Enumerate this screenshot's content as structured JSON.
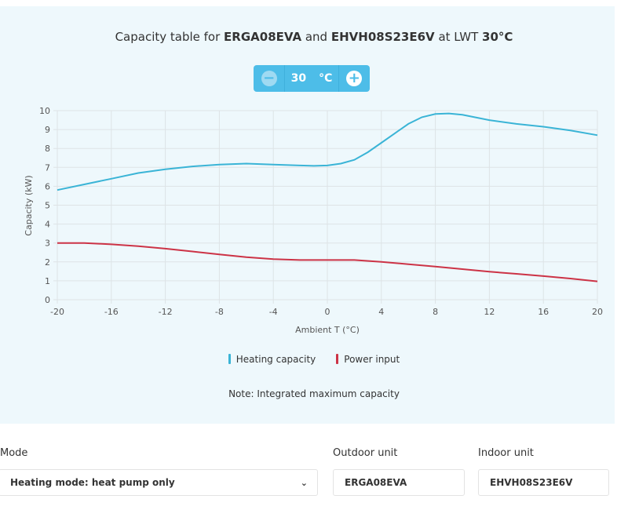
{
  "header": {
    "title_pre": "Capacity table for ",
    "outdoor": "ERGA08EVA",
    "title_and": " and ",
    "indoor": "EHVH08S23E6V",
    "title_at": " at LWT ",
    "lwt": "30°C"
  },
  "stepper": {
    "value": "30",
    "unit": "°C",
    "minus": "−",
    "plus": "+"
  },
  "legend": {
    "heating": "Heating capacity",
    "power": "Power input"
  },
  "note": "Note: Integrated maximum capacity",
  "form": {
    "mode_label": "Mode",
    "mode_value": "Heating mode: heat pump only",
    "mode_chevron": "⌄",
    "outdoor_label": "Outdoor unit",
    "outdoor_value": "ERGA08EVA",
    "indoor_label": "Indoor unit",
    "indoor_value": "EHVH08S23E6V"
  },
  "colors": {
    "heating": "#3ab4d6",
    "power": "#cc3346",
    "accent": "#4dbde8"
  },
  "chart_data": {
    "type": "line",
    "xlabel": "Ambient T (°C)",
    "ylabel": "Capacity (kW)",
    "xlim": [
      -20,
      20
    ],
    "ylim": [
      0,
      10
    ],
    "xticks": [
      -20,
      -16,
      -12,
      -8,
      -4,
      0,
      4,
      8,
      12,
      16,
      20
    ],
    "yticks": [
      0,
      1,
      2,
      3,
      4,
      5,
      6,
      7,
      8,
      9,
      10
    ],
    "grid": true,
    "legend_position": "bottom",
    "series": [
      {
        "name": "Heating capacity",
        "x": [
          -20,
          -18,
          -16,
          -14,
          -12,
          -10,
          -8,
          -6,
          -4,
          -2,
          -1,
          0,
          1,
          2,
          3,
          4,
          5,
          6,
          7,
          8,
          9,
          10,
          12,
          14,
          16,
          18,
          20
        ],
        "y": [
          5.8,
          6.1,
          6.4,
          6.7,
          6.9,
          7.05,
          7.15,
          7.2,
          7.15,
          7.1,
          7.08,
          7.1,
          7.2,
          7.4,
          7.8,
          8.3,
          8.8,
          9.3,
          9.65,
          9.82,
          9.85,
          9.78,
          9.5,
          9.3,
          9.15,
          8.95,
          8.7
        ]
      },
      {
        "name": "Power input",
        "x": [
          -20,
          -18,
          -16,
          -14,
          -12,
          -10,
          -8,
          -6,
          -4,
          -2,
          0,
          2,
          4,
          6,
          8,
          10,
          12,
          14,
          16,
          18,
          20
        ],
        "y": [
          3.0,
          3.0,
          2.93,
          2.83,
          2.7,
          2.55,
          2.4,
          2.25,
          2.15,
          2.1,
          2.1,
          2.1,
          2.0,
          1.88,
          1.75,
          1.62,
          1.48,
          1.37,
          1.25,
          1.12,
          0.97
        ]
      }
    ]
  }
}
